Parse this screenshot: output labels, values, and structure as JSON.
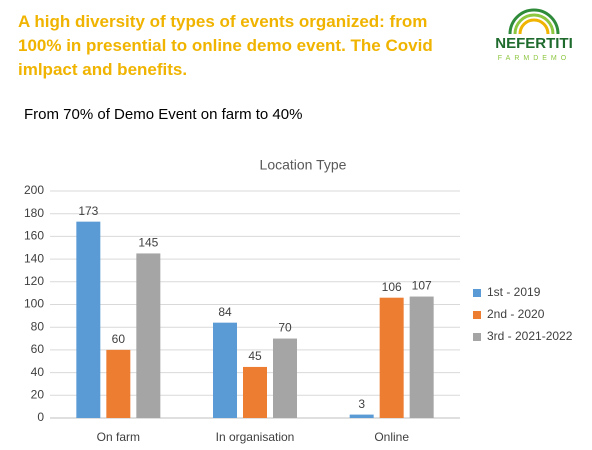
{
  "slide_title": "A high diversity of types of events organized: from 100% in presential to online demo event. The Covid imlpact and benefits.",
  "subtitle": "From 70% of Demo Event on farm to 40%",
  "logo": {
    "name": "NEFERTITI",
    "tagline": "FARMDEMO"
  },
  "chart_data": {
    "type": "bar",
    "title": "Location Type",
    "categories": [
      "On farm",
      "In organisation",
      "Online"
    ],
    "series": [
      {
        "name": "1st - 2019",
        "color": "#5b9bd5",
        "values": [
          173,
          84,
          3
        ]
      },
      {
        "name": "2nd - 2020",
        "color": "#ed7d31",
        "values": [
          60,
          45,
          106
        ]
      },
      {
        "name": "3rd - 2021-2022",
        "color": "#a5a5a5",
        "values": [
          145,
          70,
          107
        ]
      }
    ],
    "ylim": [
      0,
      200
    ],
    "yticks": [
      0,
      20,
      40,
      60,
      80,
      100,
      120,
      140,
      160,
      180,
      200
    ],
    "grid": true,
    "legend": "right"
  }
}
